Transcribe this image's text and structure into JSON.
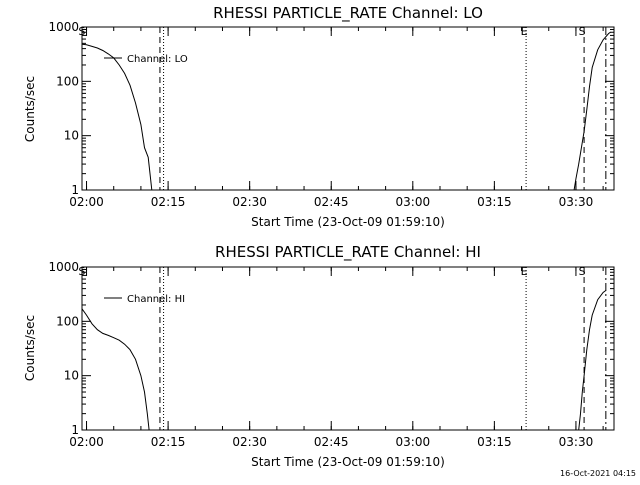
{
  "footer": {
    "timestamp": "16-Oct-2021 04:15"
  },
  "chart_data": [
    {
      "type": "line",
      "title": "RHESSI PARTICLE_RATE Channel: LO",
      "xlabel": "Start Time (23-Oct-09 01:59:10)",
      "ylabel": "Counts/sec",
      "yscale": "log",
      "ylim": [
        1,
        1000
      ],
      "xlim": [
        "01:59:10",
        "03:37:00"
      ],
      "xticks": [
        "02:00",
        "02:15",
        "02:30",
        "02:45",
        "03:00",
        "03:15",
        "03:30"
      ],
      "yticks": [
        "1",
        "10",
        "100",
        "1000"
      ],
      "legend": {
        "label": "Channel: LO",
        "position": "top-left"
      },
      "markers": [
        {
          "label": "S",
          "time": "01:59:30",
          "style": "none"
        },
        {
          "label": "",
          "time": "02:13:30",
          "style": "dashed"
        },
        {
          "label": "",
          "time": "02:14:10",
          "style": "dotted"
        },
        {
          "label": "E",
          "time": "03:20:50",
          "style": "dotted"
        },
        {
          "label": "S",
          "time": "03:31:30",
          "style": "dashed"
        },
        {
          "label": "",
          "time": "03:35:30",
          "style": "dashdot"
        }
      ],
      "series": [
        {
          "name": "Channel: LO",
          "points": [
            [
              "01:59:10",
              480
            ],
            [
              "02:00:00",
              470
            ],
            [
              "02:01:00",
              440
            ],
            [
              "02:02:00",
              410
            ],
            [
              "02:03:00",
              370
            ],
            [
              "02:04:00",
              320
            ],
            [
              "02:05:00",
              270
            ],
            [
              "02:06:00",
              200
            ],
            [
              "02:07:00",
              140
            ],
            [
              "02:08:00",
              85
            ],
            [
              "02:09:00",
              40
            ],
            [
              "02:10:00",
              16
            ],
            [
              "02:10:40",
              6
            ],
            [
              "02:11:20",
              4
            ],
            [
              "02:11:40",
              2
            ],
            [
              "02:12:00",
              1
            ]
          ]
        },
        {
          "name": "",
          "points": [
            [
              "03:29:40",
              1
            ],
            [
              "03:30:00",
              1.6
            ],
            [
              "03:30:30",
              3
            ],
            [
              "03:31:00",
              6
            ],
            [
              "03:31:30",
              12
            ],
            [
              "03:32:00",
              30
            ],
            [
              "03:32:30",
              80
            ],
            [
              "03:33:00",
              180
            ],
            [
              "03:34:00",
              380
            ],
            [
              "03:35:00",
              580
            ],
            [
              "03:36:00",
              760
            ],
            [
              "03:36:20",
              800
            ]
          ]
        }
      ]
    },
    {
      "type": "line",
      "title": "RHESSI PARTICLE_RATE Channel: HI",
      "xlabel": "Start Time (23-Oct-09 01:59:10)",
      "ylabel": "Counts/sec",
      "yscale": "log",
      "ylim": [
        1,
        1000
      ],
      "xlim": [
        "01:59:10",
        "03:37:00"
      ],
      "xticks": [
        "02:00",
        "02:15",
        "02:30",
        "02:45",
        "03:00",
        "03:15",
        "03:30"
      ],
      "yticks": [
        "1",
        "10",
        "100",
        "1000"
      ],
      "legend": {
        "label": "Channel: HI",
        "position": "top-left"
      },
      "markers": [
        {
          "label": "S",
          "time": "01:59:30",
          "style": "none"
        },
        {
          "label": "",
          "time": "02:13:30",
          "style": "dashed"
        },
        {
          "label": "",
          "time": "02:14:10",
          "style": "dotted"
        },
        {
          "label": "E",
          "time": "03:20:50",
          "style": "dotted"
        },
        {
          "label": "S",
          "time": "03:31:30",
          "style": "dashed"
        },
        {
          "label": "",
          "time": "03:35:30",
          "style": "dashdot"
        }
      ],
      "series": [
        {
          "name": "Channel: HI",
          "points": [
            [
              "01:59:10",
              170
            ],
            [
              "02:00:00",
              130
            ],
            [
              "02:01:00",
              90
            ],
            [
              "02:02:00",
              70
            ],
            [
              "02:03:00",
              60
            ],
            [
              "02:04:00",
              55
            ],
            [
              "02:05:00",
              50
            ],
            [
              "02:06:00",
              45
            ],
            [
              "02:07:00",
              38
            ],
            [
              "02:08:00",
              30
            ],
            [
              "02:09:00",
              20
            ],
            [
              "02:10:00",
              10
            ],
            [
              "02:10:40",
              5
            ],
            [
              "02:11:10",
              2
            ],
            [
              "02:11:30",
              1
            ]
          ]
        },
        {
          "name": "",
          "points": [
            [
              "03:30:30",
              1
            ],
            [
              "03:30:50",
              2
            ],
            [
              "03:31:10",
              5
            ],
            [
              "03:31:30",
              10
            ],
            [
              "03:32:00",
              30
            ],
            [
              "03:32:30",
              70
            ],
            [
              "03:33:00",
              130
            ],
            [
              "03:34:00",
              250
            ],
            [
              "03:35:00",
              340
            ],
            [
              "03:35:30",
              370
            ]
          ]
        }
      ]
    }
  ]
}
